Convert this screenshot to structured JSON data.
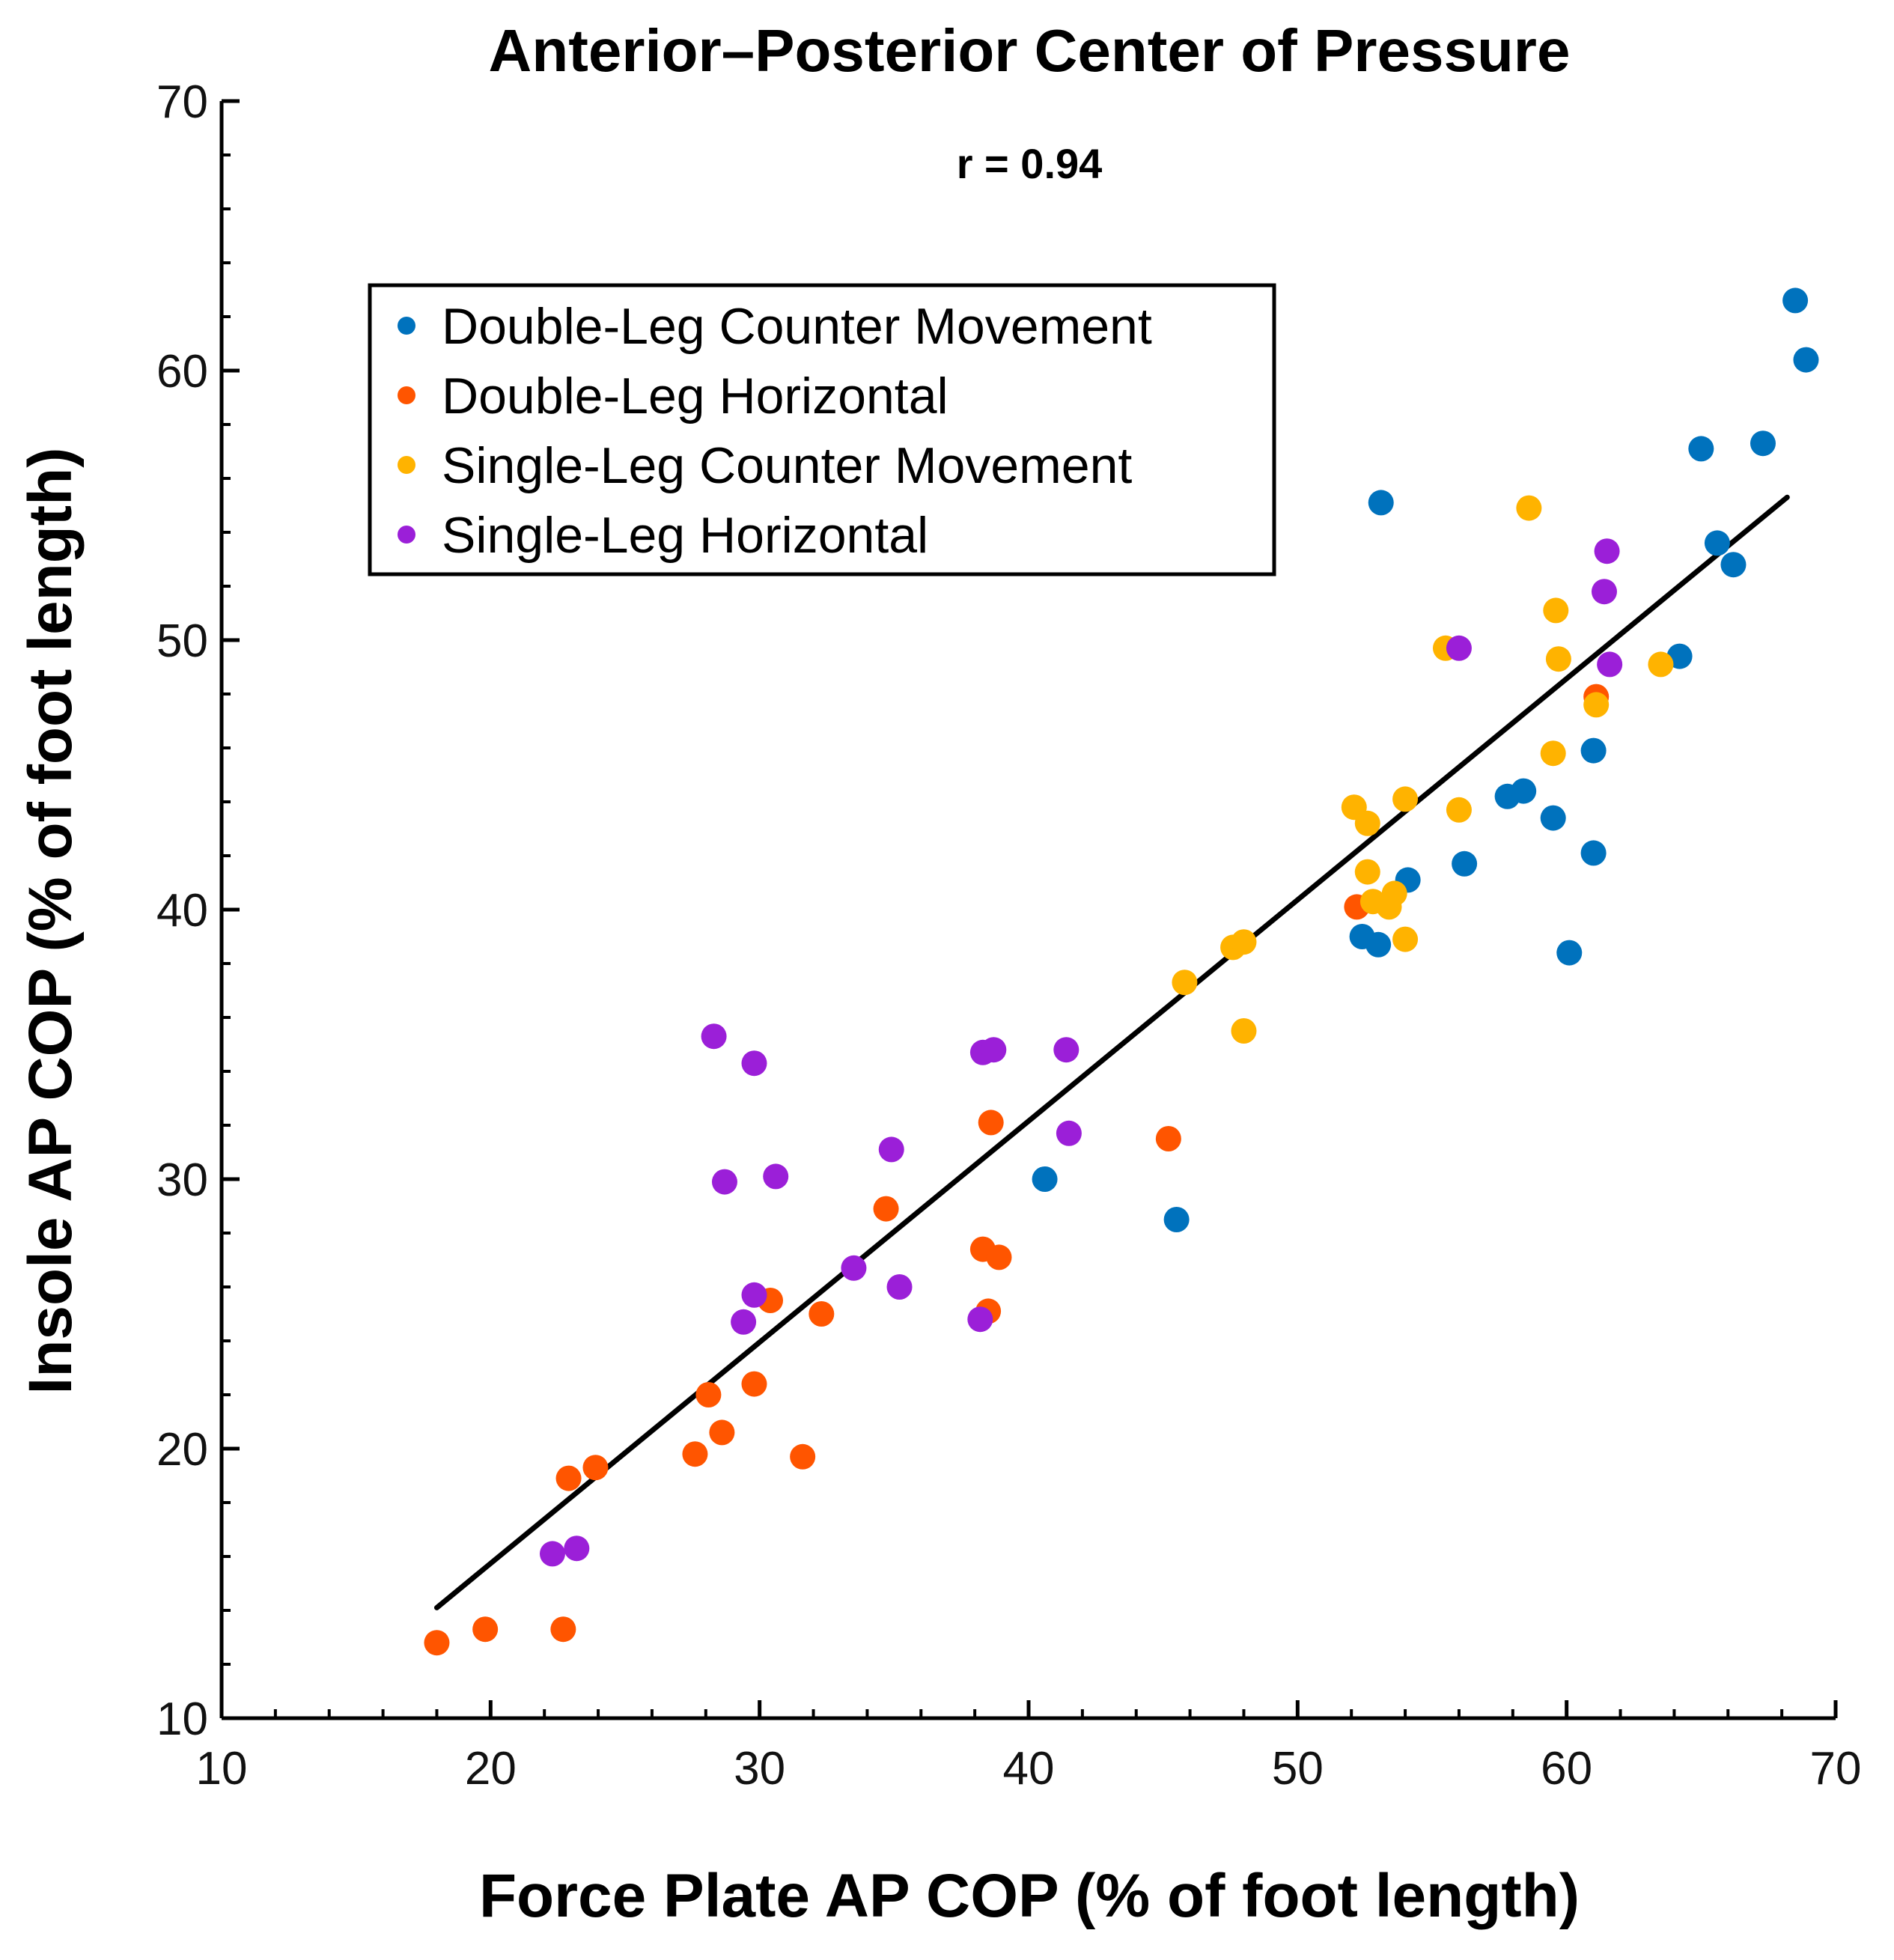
{
  "chart_data": {
    "type": "scatter",
    "title": "Anterior–Posterior Center of Pressure",
    "annotation": "r = 0.94",
    "xlabel": "Force Plate AP COP (% of foot length)",
    "ylabel": "Insole AP COP (% of foot length)",
    "xlim": [
      10,
      70
    ],
    "ylim": [
      10,
      70
    ],
    "xticks": [
      10,
      20,
      30,
      40,
      50,
      60,
      70
    ],
    "yticks": [
      10,
      20,
      30,
      40,
      50,
      60,
      70
    ],
    "grid": false,
    "legend_position": "top-left",
    "fit_line": {
      "x": [
        18,
        68.2
      ],
      "y": [
        14.1,
        55.3
      ],
      "color": "#000000"
    },
    "series": [
      {
        "name": "Double-Leg Counter Movement",
        "color": "#0072BD",
        "points": [
          [
            68.5,
            62.6
          ],
          [
            68.9,
            60.4
          ],
          [
            67.3,
            57.3
          ],
          [
            65.0,
            57.1
          ],
          [
            53.1,
            55.1
          ],
          [
            65.6,
            53.6
          ],
          [
            66.2,
            52.8
          ],
          [
            64.2,
            49.4
          ],
          [
            61.0,
            45.9
          ],
          [
            57.8,
            44.2
          ],
          [
            58.4,
            44.4
          ],
          [
            59.5,
            43.4
          ],
          [
            61.0,
            42.1
          ],
          [
            56.2,
            41.7
          ],
          [
            54.1,
            41.1
          ],
          [
            52.4,
            39.0
          ],
          [
            53.0,
            38.7
          ],
          [
            60.1,
            38.4
          ],
          [
            40.6,
            30.0
          ],
          [
            45.5,
            28.5
          ]
        ]
      },
      {
        "name": "Double-Leg Horizontal",
        "color": "#FF5500",
        "points": [
          [
            61.1,
            47.9
          ],
          [
            52.2,
            40.1
          ],
          [
            38.6,
            32.1
          ],
          [
            45.2,
            31.5
          ],
          [
            34.7,
            28.9
          ],
          [
            38.3,
            27.4
          ],
          [
            38.9,
            27.1
          ],
          [
            30.4,
            25.5
          ],
          [
            32.3,
            25.0
          ],
          [
            38.5,
            25.1
          ],
          [
            29.8,
            22.4
          ],
          [
            28.1,
            22.0
          ],
          [
            28.6,
            20.6
          ],
          [
            27.6,
            19.8
          ],
          [
            31.6,
            19.7
          ],
          [
            23.9,
            19.3
          ],
          [
            22.9,
            18.9
          ],
          [
            18.0,
            12.8
          ],
          [
            19.8,
            13.3
          ],
          [
            22.7,
            13.3
          ]
        ]
      },
      {
        "name": "Single-Leg Counter Movement",
        "color": "#FFB300",
        "points": [
          [
            58.6,
            54.9
          ],
          [
            59.6,
            51.1
          ],
          [
            55.5,
            49.7
          ],
          [
            59.7,
            49.3
          ],
          [
            63.5,
            49.1
          ],
          [
            61.1,
            47.6
          ],
          [
            59.5,
            45.8
          ],
          [
            54.0,
            44.1
          ],
          [
            52.1,
            43.8
          ],
          [
            56.0,
            43.7
          ],
          [
            52.6,
            43.2
          ],
          [
            52.6,
            41.4
          ],
          [
            52.8,
            40.3
          ],
          [
            53.6,
            40.6
          ],
          [
            53.4,
            40.1
          ],
          [
            54.0,
            38.9
          ],
          [
            47.6,
            38.6
          ],
          [
            48.0,
            38.8
          ],
          [
            45.8,
            37.3
          ],
          [
            48.0,
            35.5
          ]
        ]
      },
      {
        "name": "Single-Leg Horizontal",
        "color": "#9B1FD8",
        "points": [
          [
            61.5,
            53.3
          ],
          [
            61.4,
            51.8
          ],
          [
            56.0,
            49.7
          ],
          [
            61.6,
            49.1
          ],
          [
            28.3,
            35.3
          ],
          [
            29.8,
            34.3
          ],
          [
            38.3,
            34.7
          ],
          [
            38.7,
            34.8
          ],
          [
            41.4,
            34.8
          ],
          [
            41.5,
            31.7
          ],
          [
            34.9,
            31.1
          ],
          [
            30.6,
            30.1
          ],
          [
            28.7,
            29.9
          ],
          [
            33.5,
            26.7
          ],
          [
            35.2,
            26.0
          ],
          [
            29.8,
            25.7
          ],
          [
            29.4,
            24.7
          ],
          [
            38.2,
            24.8
          ],
          [
            23.2,
            16.3
          ],
          [
            22.3,
            16.1
          ]
        ]
      }
    ]
  }
}
